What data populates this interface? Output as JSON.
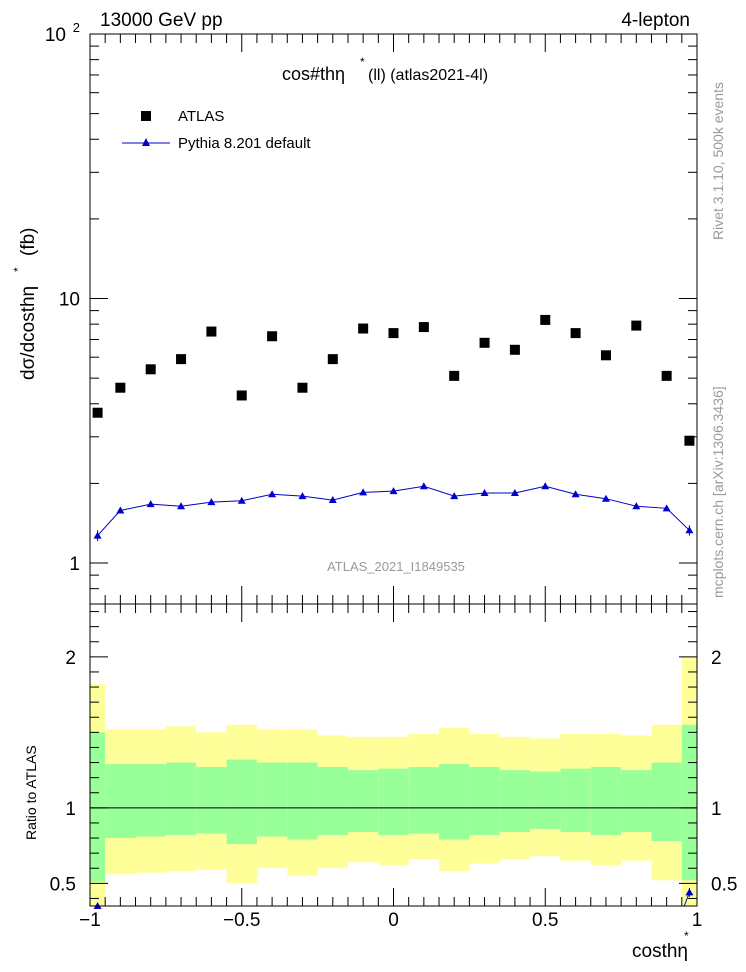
{
  "header": {
    "left": "13000 GeV pp",
    "right": "4-lepton"
  },
  "side": {
    "rivet": "Rivet 3.1.10,  500k events",
    "mcplots": "mcplots.cern.ch [arXiv:1306.3436]"
  },
  "title": {
    "main": "cos#thη",
    "sup": "*",
    "sub": "(ll) (atlas2021-4l)"
  },
  "watermark": "ATLAS_2021_I1849535",
  "legend": {
    "data": "ATLAS",
    "mc": "Pythia 8.201 default"
  },
  "axes": {
    "ylabel_top": "dσ/dcosthη",
    "ylabel_top_sup": "*",
    "ylabel_top_unit": "(fb)",
    "ylabel_bottom": "Ratio to ATLAS",
    "xlabel": "costhη",
    "xlabel_sup": "*"
  },
  "colors": {
    "data": "#000000",
    "mc": "#0000cc",
    "band_inner": "#99ff99",
    "band_outer": "#ffff99"
  },
  "chart_data": [
    {
      "type": "scatter",
      "panel": "main",
      "yscale": "log",
      "xlim": [
        -1.0,
        1.0
      ],
      "ylim": [
        0.7,
        100
      ],
      "y_tick_labels": [
        "1",
        "10",
        "10^2"
      ],
      "x_bin_edges": [
        -1.0,
        -0.95,
        -0.85,
        -0.75,
        -0.65,
        -0.55,
        -0.45,
        -0.35,
        -0.25,
        -0.15,
        -0.05,
        0.05,
        0.15,
        0.25,
        0.35,
        0.45,
        0.55,
        0.65,
        0.75,
        0.85,
        0.95,
        1.0
      ],
      "series": [
        {
          "name": "ATLAS",
          "marker": "square",
          "x": [
            -0.975,
            -0.9,
            -0.8,
            -0.7,
            -0.6,
            -0.5,
            -0.4,
            -0.3,
            -0.2,
            -0.1,
            0.0,
            0.1,
            0.2,
            0.3,
            0.4,
            0.5,
            0.6,
            0.7,
            0.8,
            0.9,
            0.975
          ],
          "y": [
            3.7,
            4.6,
            5.4,
            5.9,
            7.5,
            4.3,
            7.2,
            4.6,
            5.9,
            7.7,
            7.4,
            7.8,
            5.1,
            6.8,
            6.4,
            8.3,
            7.4,
            6.1,
            7.9,
            5.1,
            2.9
          ]
        },
        {
          "name": "Pythia 8.201 default",
          "marker": "triangle",
          "x": [
            -0.975,
            -0.9,
            -0.8,
            -0.7,
            -0.6,
            -0.5,
            -0.4,
            -0.3,
            -0.2,
            -0.1,
            0.0,
            0.1,
            0.2,
            0.3,
            0.4,
            0.5,
            0.6,
            0.7,
            0.8,
            0.9,
            0.975
          ],
          "y": [
            1.27,
            1.58,
            1.67,
            1.64,
            1.7,
            1.72,
            1.82,
            1.79,
            1.73,
            1.85,
            1.87,
            1.95,
            1.79,
            1.84,
            1.84,
            1.95,
            1.82,
            1.75,
            1.64,
            1.61,
            1.33
          ],
          "yerr": [
            0.06,
            0.03,
            0.03,
            0.03,
            0.03,
            0.03,
            0.03,
            0.03,
            0.03,
            0.03,
            0.03,
            0.03,
            0.03,
            0.03,
            0.03,
            0.03,
            0.03,
            0.03,
            0.03,
            0.03,
            0.06
          ]
        }
      ]
    },
    {
      "type": "area",
      "panel": "ratio",
      "xlim": [
        -1.0,
        1.0
      ],
      "ylim": [
        0.35,
        2.35
      ],
      "x_tick_labels": [
        "−1",
        "−0.5",
        "0",
        "0.5",
        "1"
      ],
      "y_tick_labels": [
        "0.5",
        "1",
        "2"
      ],
      "reference_line": 1,
      "band_inner_low": [
        0.51,
        0.8,
        0.81,
        0.82,
        0.83,
        0.76,
        0.81,
        0.79,
        0.82,
        0.84,
        0.82,
        0.83,
        0.79,
        0.82,
        0.84,
        0.86,
        0.84,
        0.82,
        0.84,
        0.78,
        0.52
      ],
      "band_inner_high": [
        1.5,
        1.29,
        1.29,
        1.3,
        1.27,
        1.32,
        1.3,
        1.3,
        1.27,
        1.25,
        1.26,
        1.27,
        1.29,
        1.27,
        1.25,
        1.24,
        1.26,
        1.27,
        1.25,
        1.3,
        1.55
      ],
      "band_outer_low": [
        0.35,
        0.56,
        0.57,
        0.58,
        0.59,
        0.5,
        0.6,
        0.55,
        0.6,
        0.64,
        0.62,
        0.66,
        0.58,
        0.63,
        0.66,
        0.68,
        0.65,
        0.62,
        0.65,
        0.52,
        0.35
      ],
      "band_outer_high": [
        1.82,
        1.52,
        1.52,
        1.54,
        1.5,
        1.55,
        1.52,
        1.52,
        1.48,
        1.47,
        1.47,
        1.49,
        1.53,
        1.49,
        1.47,
        1.46,
        1.49,
        1.49,
        1.48,
        1.55,
        2.0
      ],
      "series": [
        {
          "name": "Pythia 8.201 default",
          "x": [
            -0.975,
            0.975
          ],
          "y": [
            0.34,
            0.44
          ],
          "yerr": [
            0.03,
            0.03
          ]
        }
      ]
    }
  ]
}
